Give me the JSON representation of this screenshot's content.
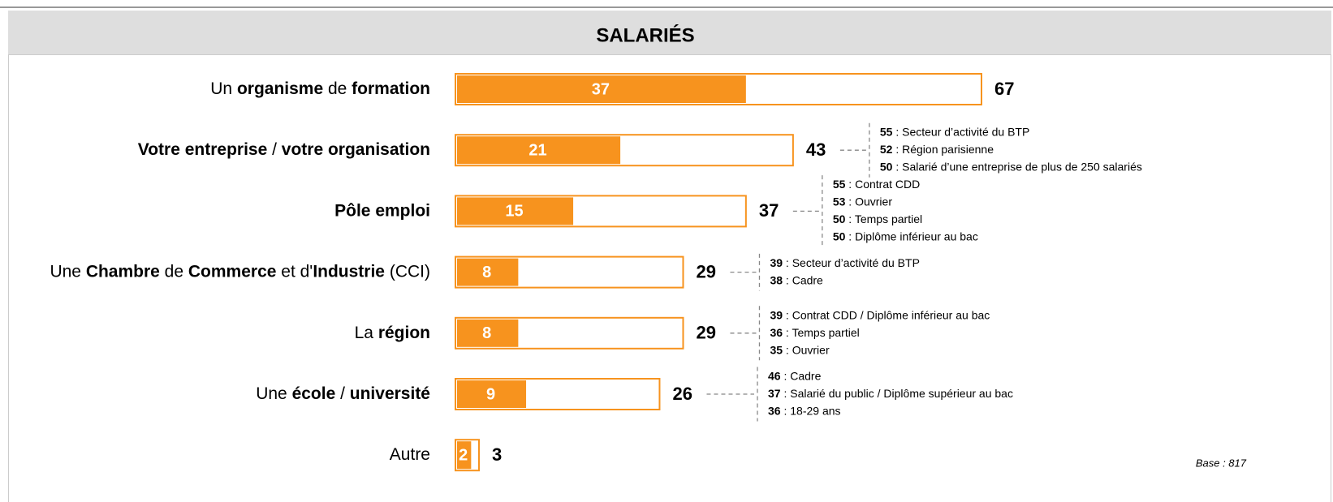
{
  "chart_data": {
    "type": "bar",
    "orientation": "horizontal",
    "title": "SALARIÉS",
    "categories": [
      [
        {
          "text": "Un ",
          "bold": false
        },
        {
          "text": "organisme",
          "bold": true
        },
        {
          "text": " de ",
          "bold": false
        },
        {
          "text": "formation",
          "bold": true
        }
      ],
      [
        {
          "text": "Votre entreprise",
          "bold": true
        },
        {
          "text": " / ",
          "bold": false
        },
        {
          "text": "votre organisation",
          "bold": true
        }
      ],
      [
        {
          "text": "Pôle emploi",
          "bold": true
        }
      ],
      [
        {
          "text": "Une ",
          "bold": false
        },
        {
          "text": "Chambre",
          "bold": true
        },
        {
          "text": " de ",
          "bold": false
        },
        {
          "text": "Commerce",
          "bold": true
        },
        {
          "text": " et d'",
          "bold": false
        },
        {
          "text": "Industrie",
          "bold": true
        },
        {
          "text": " (CCI)",
          "bold": false
        }
      ],
      [
        {
          "text": "La ",
          "bold": false
        },
        {
          "text": "région",
          "bold": true
        }
      ],
      [
        {
          "text": "Une ",
          "bold": false
        },
        {
          "text": "école",
          "bold": true
        },
        {
          "text": " / ",
          "bold": false
        },
        {
          "text": "université",
          "bold": true
        }
      ],
      [
        {
          "text": "Autre",
          "bold": false
        }
      ]
    ],
    "series": [
      {
        "color": "#f7931e",
        "values": [
          37,
          21,
          15,
          8,
          8,
          9,
          2
        ]
      },
      {
        "color": "#f7931e",
        "values": [
          67,
          43,
          37,
          29,
          29,
          26,
          3
        ]
      }
    ],
    "xlim": [
      0,
      67
    ],
    "annotations": [
      [],
      [
        {
          "value": 55,
          "text": " : Secteur d’activité du BTP"
        },
        {
          "value": 52,
          "text": " : Région parisienne"
        },
        {
          "value": 50,
          "text": " : Salarié d’une entreprise de plus de 250 salariés"
        }
      ],
      [
        {
          "value": 55,
          "text": " : Contrat CDD"
        },
        {
          "value": 53,
          "text": " : Ouvrier"
        },
        {
          "value": 50,
          "text": " : Temps partiel"
        },
        {
          "value": 50,
          "text": " : Diplôme inférieur au bac"
        }
      ],
      [
        {
          "value": 39,
          "text": " : Secteur d’activité du BTP"
        },
        {
          "value": 38,
          "text": " : Cadre"
        }
      ],
      [
        {
          "value": 39,
          "text": " : Contrat CDD / Diplôme inférieur au bac"
        },
        {
          "value": 36,
          "text": " : Temps partiel"
        },
        {
          "value": 35,
          "text": " : Ouvrier"
        }
      ],
      [
        {
          "value": 46,
          "text": " : Cadre"
        },
        {
          "value": 37,
          "text": " : Salarié du public / Diplôme supérieur au bac"
        },
        {
          "value": 36,
          "text": " : 18-29 ans"
        }
      ],
      []
    ],
    "footnote": "Base : 817"
  }
}
